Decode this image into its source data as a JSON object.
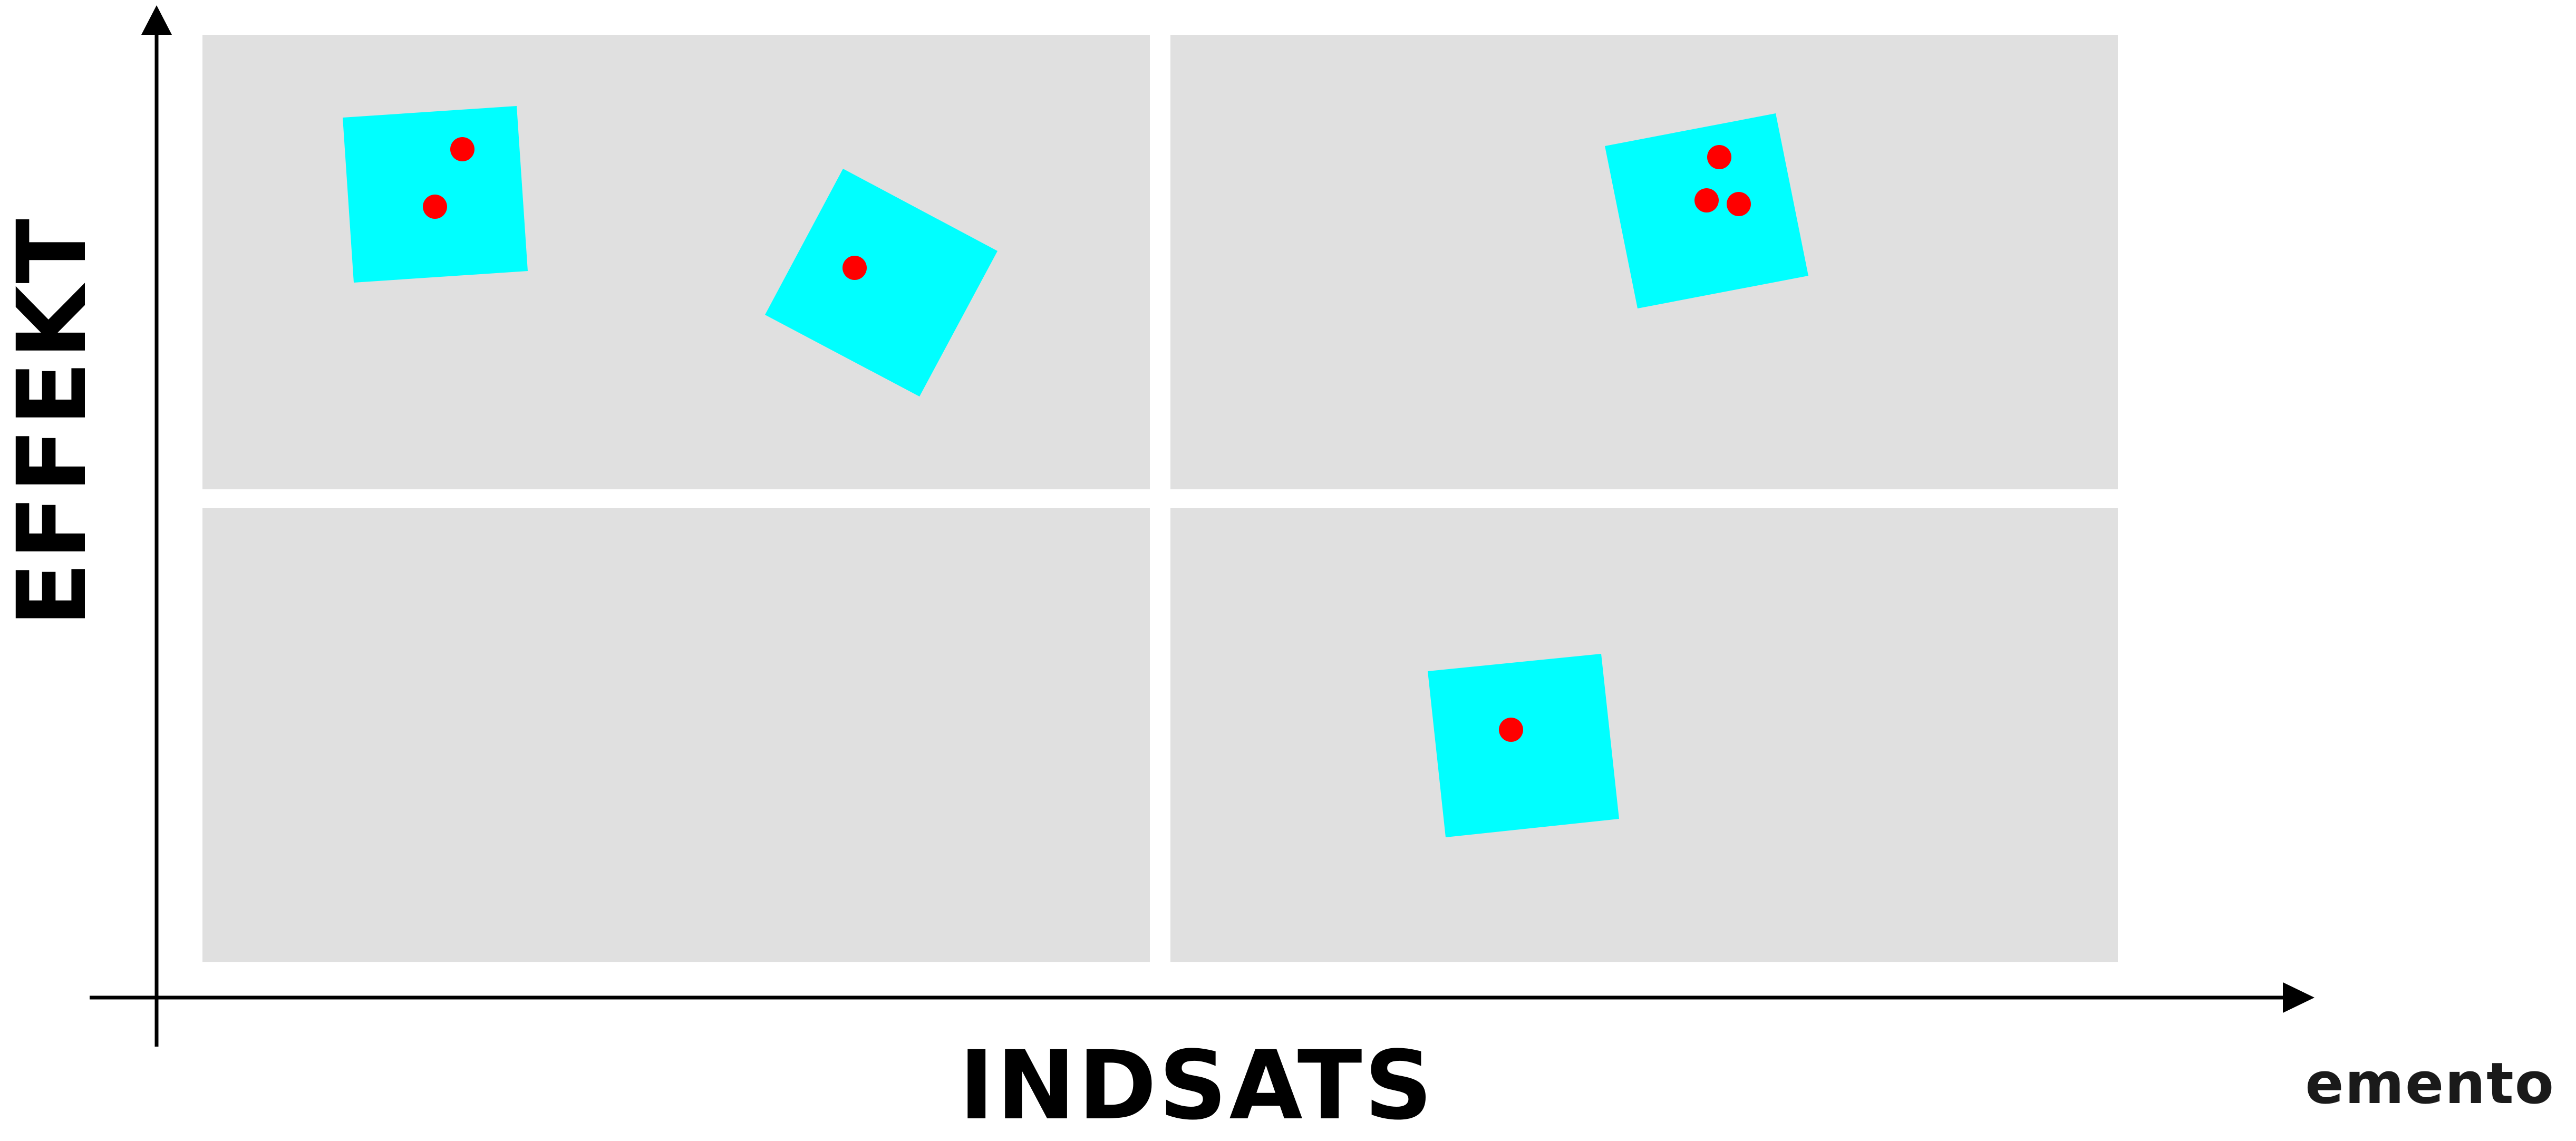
{
  "axes": {
    "x_label": "INDSATS",
    "y_label": "EFFEKT"
  },
  "logo_text": "emento",
  "colors": {
    "quadrant_fill": "#e0e0e0",
    "note_fill": "#00ffff",
    "dot_fill": "#ff0000",
    "axis": "#000000",
    "background": "#ffffff"
  },
  "quadrants": [
    {
      "position": "top-left"
    },
    {
      "position": "top-right"
    },
    {
      "position": "bottom-left"
    },
    {
      "position": "bottom-right"
    }
  ],
  "notes": [
    {
      "quadrant": "top-left",
      "dots": 2
    },
    {
      "quadrant": "top-left",
      "dots": 1
    },
    {
      "quadrant": "top-right",
      "dots": 3
    },
    {
      "quadrant": "bottom-right",
      "dots": 1
    }
  ]
}
